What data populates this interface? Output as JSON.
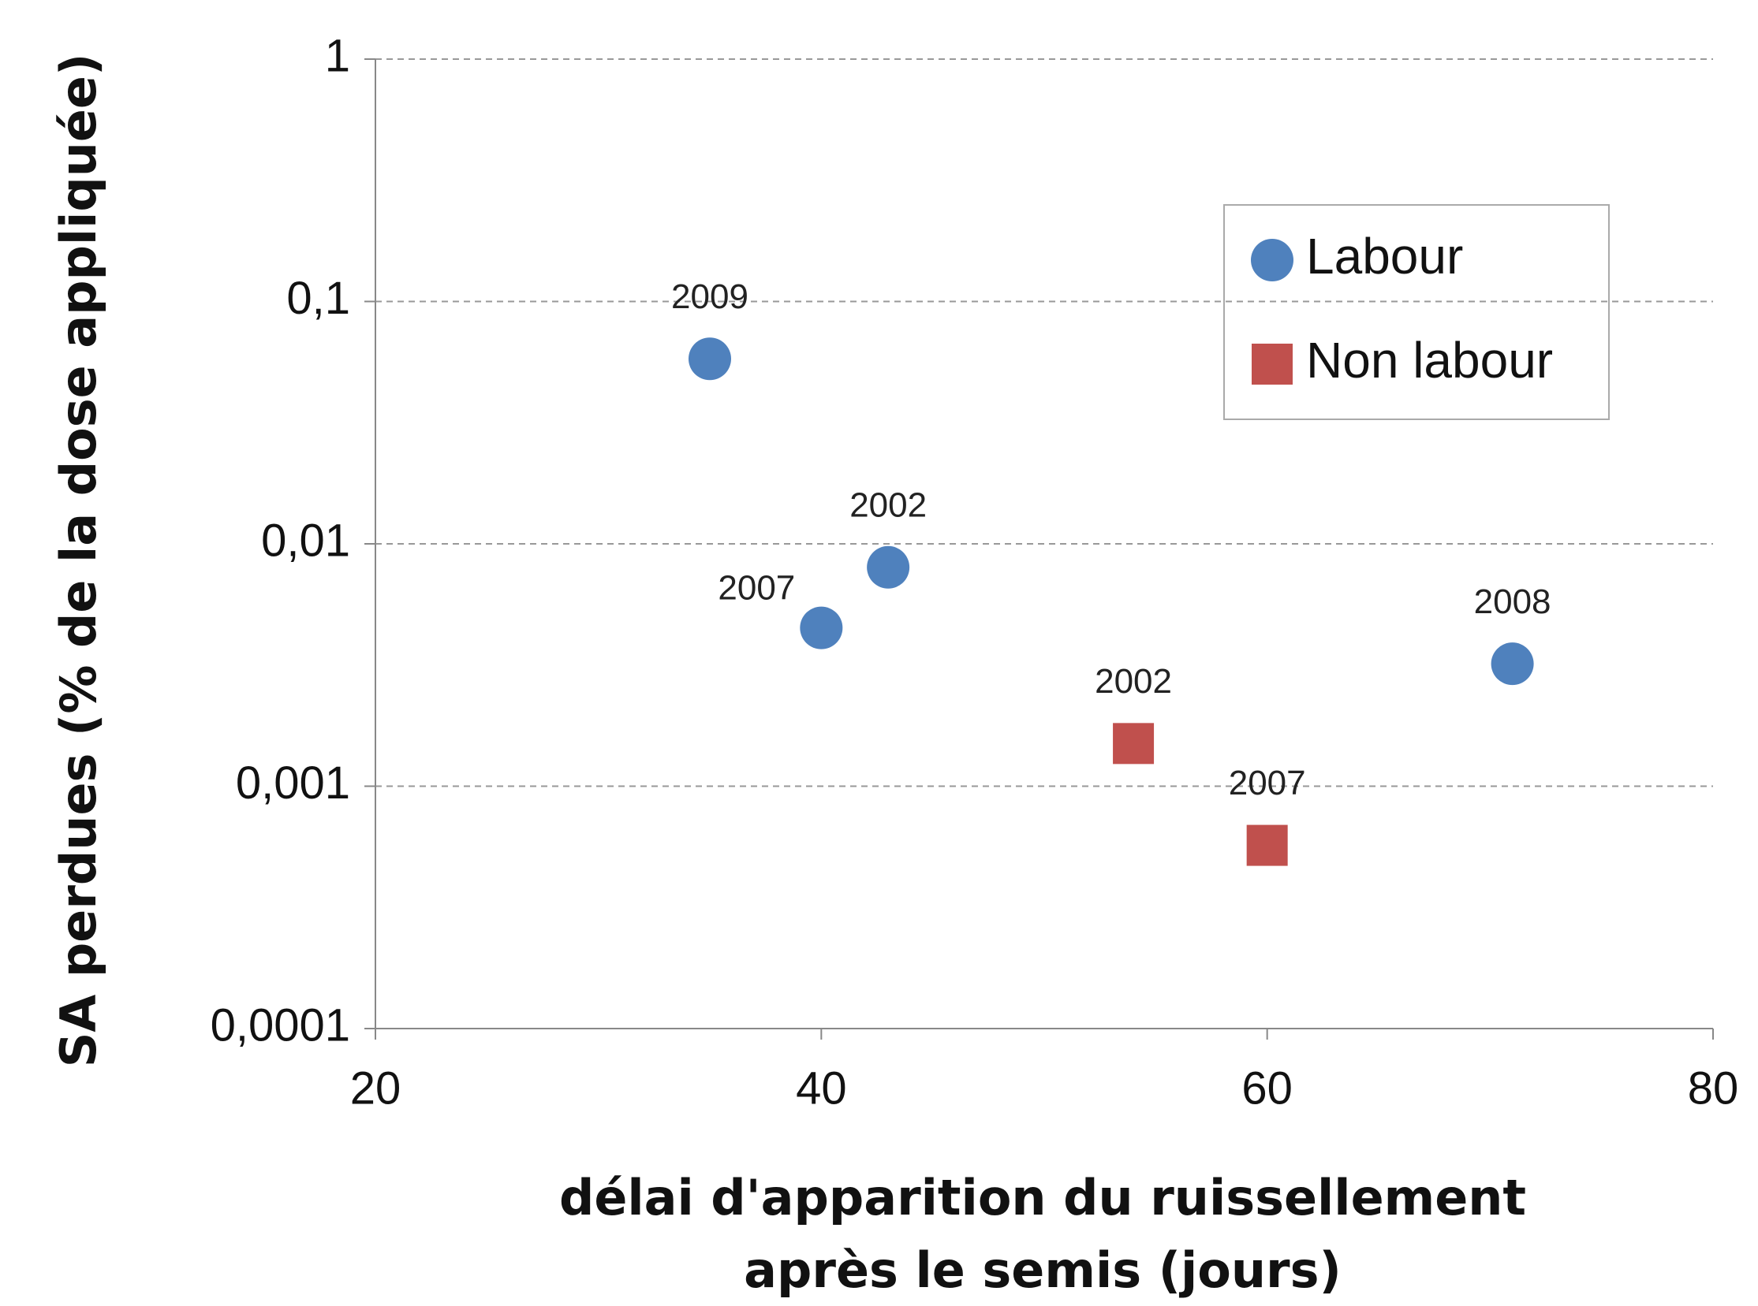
{
  "chart_data": {
    "type": "scatter",
    "xlabel": [
      "délai d'apparition du ruissellement",
      "après le semis (jours)"
    ],
    "ylabel": "SA perdues (% de la dose appliquée)",
    "xlim": [
      20,
      80
    ],
    "xticks": [
      20,
      40,
      60,
      80
    ],
    "ylim": [
      0.0001,
      1
    ],
    "log_y": true,
    "yticks": [
      {
        "value": 0.0001,
        "label": "0,0001"
      },
      {
        "value": 0.001,
        "label": "0,001"
      },
      {
        "value": 0.01,
        "label": "0,01"
      },
      {
        "value": 0.1,
        "label": "0,1"
      },
      1
    ],
    "grid": true,
    "series": [
      {
        "name": "Labour",
        "color": "#4f81bd",
        "marker": "circle",
        "x": [
          35,
          40,
          43,
          71
        ],
        "values": [
          0.058,
          0.0045,
          0.008,
          0.0032
        ],
        "labels": [
          "2009",
          "2007",
          "2002",
          "2008"
        ]
      },
      {
        "name": "Non labour",
        "color": "#c0504d",
        "marker": "square",
        "x": [
          54,
          60
        ],
        "values": [
          0.0015,
          0.00057
        ],
        "labels": [
          "2002",
          "2007"
        ]
      }
    ]
  }
}
